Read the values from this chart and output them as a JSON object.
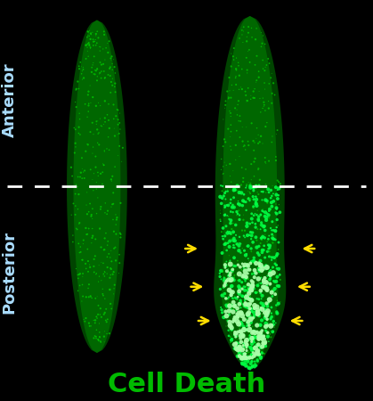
{
  "bg_color": "#000000",
  "worm_dark": "#004400",
  "worm_mid": "#007700",
  "worm_bright": "#00cc00",
  "worm2_bright": "#00ff44",
  "glow_bright": "#aaffaa",
  "dashed_line_color": "#ffffff",
  "anterior_label": "Anterior",
  "posterior_label": "Posterior",
  "title": "Cell Death",
  "title_color": "#00bb00",
  "label_color": "#aaddff",
  "arrow_color": "#ffdd00",
  "title_fontsize": 22,
  "label_fontsize": 13
}
